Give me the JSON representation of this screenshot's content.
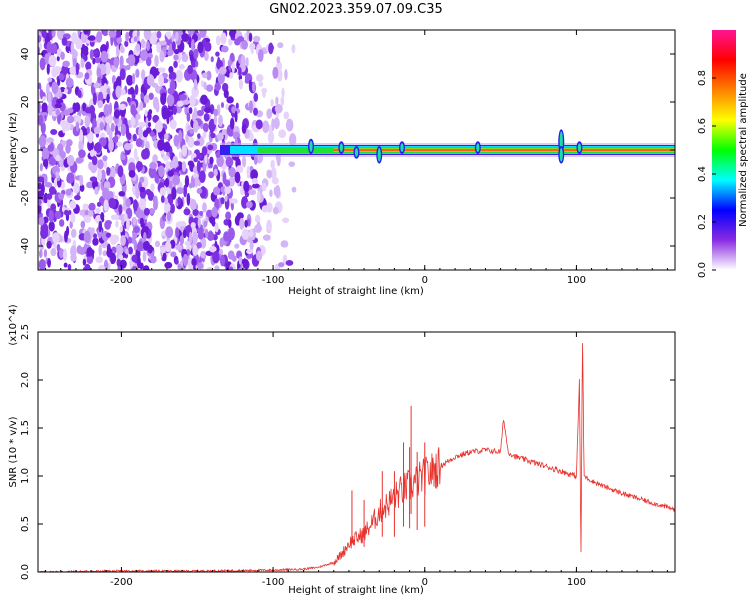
{
  "title": "GN02.2023.359.07.09.C35",
  "chart_data": [
    {
      "type": "heatmap",
      "xlabel": "Height of straight line (km)",
      "ylabel": "Frequency (Hz)",
      "xlim": [
        -255,
        165
      ],
      "ylim": [
        -50,
        50
      ],
      "xticks": [
        -200,
        -100,
        0,
        100
      ],
      "yticks": [
        -40,
        -20,
        0,
        20,
        40
      ],
      "grid": false,
      "colorbar": {
        "label": "Normalized spectral amplitude",
        "range": [
          0.0,
          1.0
        ],
        "ticks": [
          "0.0",
          "0.2",
          "0.4",
          "0.6",
          "0.8"
        ],
        "colormap": [
          "#ffffff",
          "#8a2be2",
          "#0000ff",
          "#00ffff",
          "#00ff00",
          "#ffff00",
          "#ff8000",
          "#ff0000",
          "#ff1493"
        ]
      },
      "noise_region_x": [
        -255,
        -88
      ],
      "carrier_line": {
        "frequency_hz": 0,
        "visible_from_km": -135,
        "visible_to_km": 165
      },
      "signal_wiggles": [
        {
          "x": -75,
          "freq": 3
        },
        {
          "x": -55,
          "freq": 2
        },
        {
          "x": -45,
          "freq": -2
        },
        {
          "x": -30,
          "freq": -4
        },
        {
          "x": -15,
          "freq": 2
        },
        {
          "x": 35,
          "freq": 2
        },
        {
          "x": 90,
          "freq": 7
        },
        {
          "x": 90,
          "freq": -4
        },
        {
          "x": 102,
          "freq": 2
        }
      ]
    },
    {
      "type": "line",
      "xlabel": "Height of straight line (km)",
      "ylabel": "SNR (10 * v/v)",
      "y_multiplier": "(x10^4)",
      "xlim": [
        -255,
        165
      ],
      "ylim": [
        0,
        2.5
      ],
      "xticks": [
        -200,
        -100,
        0,
        100
      ],
      "yticks": [
        "0.0",
        "0.5",
        "1.0",
        "1.5",
        "2.0",
        "2.5"
      ],
      "grid": false,
      "line_color": "#e8322e",
      "series": [
        {
          "x": [
            -255,
            -200,
            -150,
            -100,
            -80,
            -70,
            -60,
            -55,
            -50,
            -45,
            -40,
            -35,
            -30,
            -25,
            -20,
            -15,
            -10,
            -5,
            0,
            10,
            20,
            30,
            40,
            50,
            52,
            55,
            60,
            70,
            80,
            90,
            95,
            100,
            102,
            103,
            104,
            105,
            110,
            120,
            130,
            140,
            150,
            165
          ],
          "y": [
            0.0,
            0.01,
            0.01,
            0.02,
            0.03,
            0.05,
            0.1,
            0.18,
            0.3,
            0.35,
            0.4,
            0.5,
            0.62,
            0.7,
            0.78,
            0.85,
            0.9,
            0.95,
            1.0,
            1.1,
            1.2,
            1.25,
            1.27,
            1.25,
            1.6,
            1.25,
            1.2,
            1.15,
            1.1,
            1.05,
            1.02,
            1.0,
            2.0,
            0.1,
            2.55,
            1.0,
            0.95,
            0.88,
            0.82,
            0.77,
            0.72,
            0.65
          ]
        }
      ],
      "spikes": [
        {
          "x": -48,
          "y": 0.85
        },
        {
          "x": -40,
          "y": 0.75
        },
        {
          "x": -28,
          "y": 1.05
        },
        {
          "x": -20,
          "y": 1.05
        },
        {
          "x": -14,
          "y": 1.35
        },
        {
          "x": -10,
          "y": 1.3
        },
        {
          "x": -9,
          "y": 1.73
        },
        {
          "x": -5,
          "y": 1.25
        },
        {
          "x": 0,
          "y": 1.35
        }
      ]
    }
  ]
}
